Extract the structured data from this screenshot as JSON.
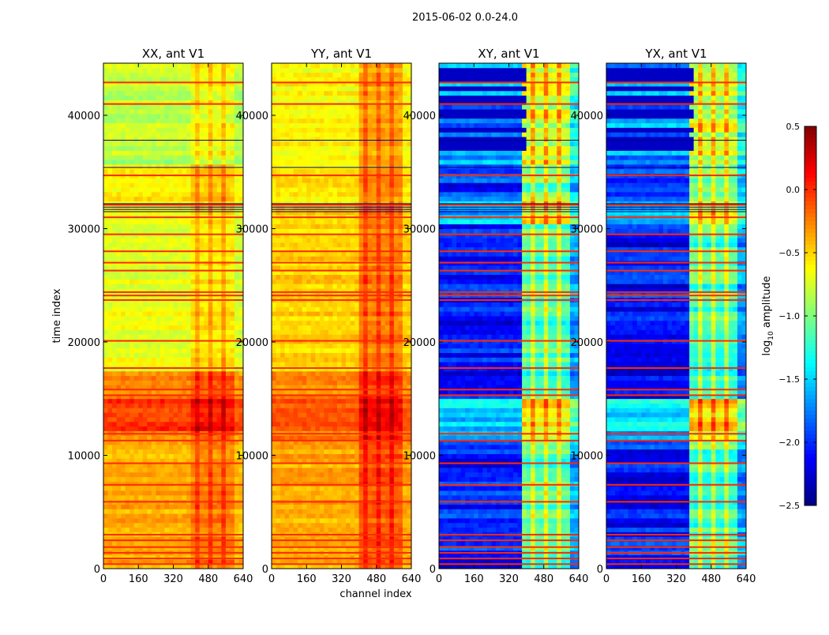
{
  "chart_data": {
    "type": "heatmap",
    "title": "2015-06-02 0.0-24.0",
    "xlabel": "channel index",
    "ylabel": "time index",
    "xlim": [
      0,
      640
    ],
    "ylim": [
      0,
      44600
    ],
    "xticks": [
      0,
      160,
      320,
      480,
      640
    ],
    "yticks": [
      0,
      10000,
      20000,
      30000,
      40000
    ],
    "colormap": "jet",
    "colorbar": {
      "label": "log10 amplitude",
      "label_main": "log",
      "label_sub": "10",
      "label_rest": " amplitude",
      "range": [
        -2.5,
        0.5
      ],
      "ticks": [
        "0.5",
        "0.0",
        "−0.5",
        "−1.0",
        "−1.5",
        "−2.0",
        "−2.5"
      ],
      "tick_values": [
        0.5,
        0.0,
        -0.5,
        -1.0,
        -1.5,
        -2.0,
        -2.5
      ]
    },
    "flag_lines": {
      "level": 0.0,
      "times": [
        400,
        900,
        1400,
        1900,
        2500,
        3000,
        5900,
        7400,
        9300,
        11300,
        11900,
        15300,
        15800,
        17700,
        20100,
        23700,
        24100,
        24400,
        26300,
        27000,
        28000,
        29500,
        31000,
        32100,
        34700,
        41000,
        42900
      ]
    },
    "dark_lines": {
      "level": -2.5,
      "times": [
        31500,
        31700,
        31900,
        32200,
        35400,
        37800
      ]
    },
    "panels": [
      {
        "title": "XX, ant V1",
        "time_bands": [
          [
            0,
            3000,
            -0.35
          ],
          [
            3000,
            11000,
            -0.4
          ],
          [
            11000,
            12000,
            -0.25
          ],
          [
            12000,
            15000,
            -0.05
          ],
          [
            15000,
            17300,
            -0.3
          ],
          [
            17300,
            31500,
            -0.68
          ],
          [
            31500,
            35500,
            -0.55
          ],
          [
            35500,
            36500,
            -0.95
          ],
          [
            36500,
            44600,
            -0.8
          ]
        ],
        "channel_bands": [
          [
            0,
            400,
            0.0
          ],
          [
            400,
            600,
            0.18
          ],
          [
            600,
            640,
            -0.05
          ]
        ]
      },
      {
        "title": "YY, ant V1",
        "time_bands": [
          [
            0,
            3000,
            -0.4
          ],
          [
            3000,
            11000,
            -0.38
          ],
          [
            11000,
            12000,
            -0.25
          ],
          [
            12000,
            15000,
            -0.1
          ],
          [
            15000,
            17300,
            -0.3
          ],
          [
            17300,
            31500,
            -0.5
          ],
          [
            31500,
            35500,
            -0.55
          ],
          [
            35500,
            44600,
            -0.62
          ]
        ],
        "channel_bands": [
          [
            0,
            400,
            0.0
          ],
          [
            400,
            600,
            0.3
          ],
          [
            600,
            640,
            0.0
          ]
        ]
      },
      {
        "title": "XY, ant V1",
        "time_bands": [
          [
            0,
            11000,
            -2.05
          ],
          [
            11000,
            12000,
            -1.7
          ],
          [
            12000,
            15000,
            -1.45
          ],
          [
            15000,
            30500,
            -2.1
          ],
          [
            30500,
            33000,
            -1.6
          ],
          [
            33000,
            35500,
            -2.0
          ],
          [
            35500,
            44600,
            -1.7
          ]
        ],
        "channel_bands": [
          [
            0,
            390,
            0.0
          ],
          [
            390,
            600,
            1.0
          ],
          [
            600,
            640,
            0.4
          ]
        ]
      },
      {
        "title": "YX, ant V1",
        "time_bands": [
          [
            0,
            11000,
            -2.05
          ],
          [
            11000,
            12000,
            -1.7
          ],
          [
            12000,
            15000,
            -1.45
          ],
          [
            15000,
            30500,
            -2.1
          ],
          [
            30500,
            33000,
            -1.6
          ],
          [
            33000,
            35500,
            -2.0
          ],
          [
            35500,
            44600,
            -1.7
          ]
        ],
        "channel_bands": [
          [
            0,
            390,
            0.0
          ],
          [
            390,
            600,
            1.0
          ],
          [
            600,
            640,
            0.4
          ]
        ]
      }
    ]
  }
}
